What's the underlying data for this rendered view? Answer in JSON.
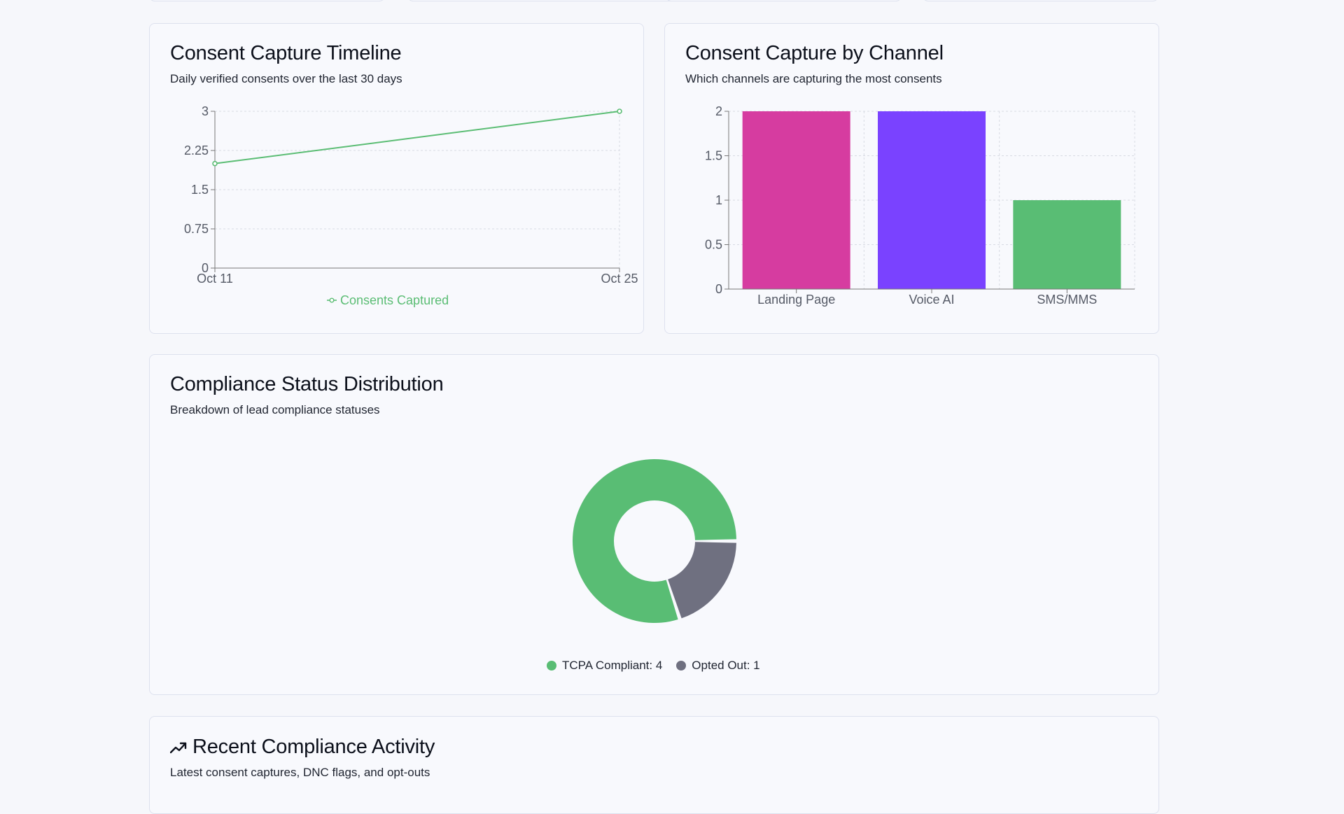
{
  "top_cards": [
    {},
    {},
    {},
    {}
  ],
  "timeline": {
    "title": "Consent Capture Timeline",
    "subtitle": "Daily verified consents over the last 30 days",
    "chart_data": {
      "type": "line",
      "x": [
        "Oct 11",
        "Oct 25"
      ],
      "series": [
        {
          "name": "Consents Captured",
          "values": [
            2,
            3
          ],
          "color": "#5bbd74"
        }
      ],
      "yticks": [
        "0",
        "0.75",
        "1.5",
        "2.25",
        "3"
      ],
      "ylim": [
        0,
        3
      ],
      "grid": true,
      "legend": "bottom"
    }
  },
  "channel": {
    "title": "Consent Capture by Channel",
    "subtitle": "Which channels are capturing the most consents",
    "chart_data": {
      "type": "bar",
      "categories": [
        "Landing Page",
        "Voice AI",
        "SMS/MMS"
      ],
      "values": [
        2,
        2,
        1
      ],
      "colors": [
        "#d63ca0",
        "#7a42ff",
        "#59bd74"
      ],
      "yticks": [
        "0",
        "0.5",
        "1",
        "1.5",
        "2"
      ],
      "ylim": [
        0,
        2
      ],
      "grid": true
    }
  },
  "compliance": {
    "title": "Compliance Status Distribution",
    "subtitle": "Breakdown of lead compliance statuses",
    "chart_data": {
      "type": "pie",
      "labels": [
        "TCPA Compliant",
        "Opted Out"
      ],
      "values": [
        4,
        1
      ],
      "colors": [
        "#59bd74",
        "#6f7080"
      ],
      "legend": "bottom"
    },
    "legend_items": [
      {
        "label": "TCPA Compliant: 4",
        "color": "#59bd74"
      },
      {
        "label": "Opted Out: 1",
        "color": "#6f7080"
      }
    ]
  },
  "activity": {
    "title": "Recent Compliance Activity",
    "subtitle": "Latest consent captures, DNC flags, and opt-outs",
    "icon": "trending-up-icon"
  }
}
